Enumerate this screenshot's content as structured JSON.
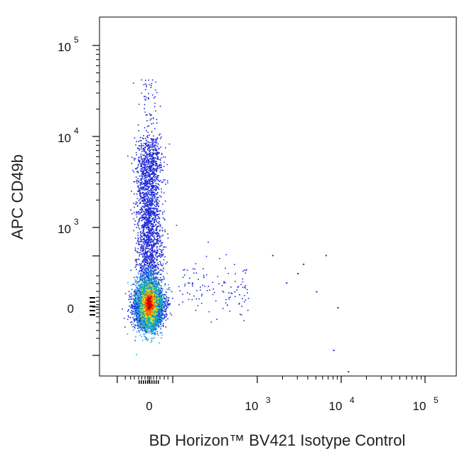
{
  "chart_data": {
    "type": "scatter",
    "title": "",
    "xlabel": "BD Horizon™ BV421 Isotype Control",
    "ylabel": "APC CD49b",
    "scale": "biexponential",
    "grid": false,
    "x_ticks": [
      {
        "value": 0,
        "base": "0",
        "exp": ""
      },
      {
        "value": 1000,
        "base": "10",
        "exp": "3"
      },
      {
        "value": 10000,
        "base": "10",
        "exp": "4"
      },
      {
        "value": 100000,
        "base": "10",
        "exp": "5"
      }
    ],
    "y_ticks": [
      {
        "value": 0,
        "base": "0",
        "exp": ""
      },
      {
        "value": 1000,
        "base": "10",
        "exp": "3"
      },
      {
        "value": 10000,
        "base": "10",
        "exp": "4"
      },
      {
        "value": 100000,
        "base": "10",
        "exp": "5"
      }
    ],
    "populations": [
      {
        "name": "main",
        "x_center": 0,
        "y_center": 0,
        "density": "highest (red core)",
        "color_scale": [
          "#1f2bd6",
          "#18a6e8",
          "#20c080",
          "#f0e020",
          "#ff6a00",
          "#d00000"
        ]
      },
      {
        "name": "CD49b+",
        "x_center": 0,
        "y_range": [
          1000,
          10000
        ]
      }
    ],
    "outlier_points": [
      [
        1500,
        500
      ],
      [
        2200,
        250
      ],
      [
        3000,
        80
      ],
      [
        3500,
        400
      ],
      [
        5000,
        200
      ],
      [
        6500,
        500
      ],
      [
        8000,
        -100
      ],
      [
        9000,
        0
      ],
      [
        12000,
        -150
      ]
    ]
  },
  "colors": {
    "low_density": "#1f2bd6",
    "mid_density": "#22b07a",
    "high_density": "#ffd400",
    "peak_density": "#d00000"
  }
}
